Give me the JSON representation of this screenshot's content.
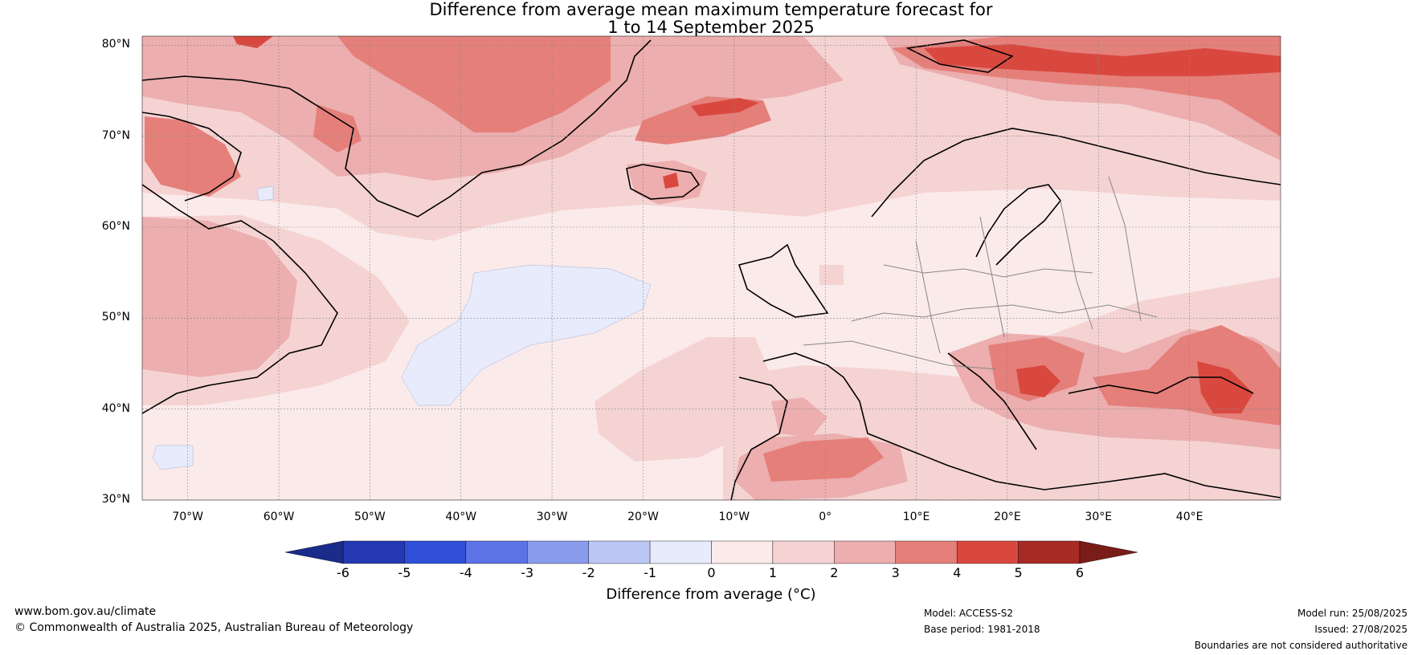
{
  "title": {
    "line1": "Difference from average mean maximum temperature forecast for",
    "line2": "1 to 14 September 2025"
  },
  "map": {
    "lon_range": [
      -75,
      50
    ],
    "lat_range": [
      30,
      81
    ],
    "lat_ticks": [
      {
        "value": 80,
        "label": "80°N"
      },
      {
        "value": 70,
        "label": "70°N"
      },
      {
        "value": 60,
        "label": "60°N"
      },
      {
        "value": 50,
        "label": "50°N"
      },
      {
        "value": 40,
        "label": "40°N"
      },
      {
        "value": 30,
        "label": "30°N"
      }
    ],
    "lon_ticks": [
      {
        "value": -70,
        "label": "70°W"
      },
      {
        "value": -60,
        "label": "60°W"
      },
      {
        "value": -50,
        "label": "50°W"
      },
      {
        "value": -40,
        "label": "40°W"
      },
      {
        "value": -30,
        "label": "30°W"
      },
      {
        "value": -20,
        "label": "20°W"
      },
      {
        "value": -10,
        "label": "10°W"
      },
      {
        "value": 0,
        "label": "0°"
      },
      {
        "value": 10,
        "label": "10°E"
      },
      {
        "value": 20,
        "label": "20°E"
      },
      {
        "value": 30,
        "label": "30°E"
      },
      {
        "value": 40,
        "label": "40°E"
      }
    ]
  },
  "colorbar": {
    "label": "Difference from average (°C)",
    "bins": [
      {
        "from": -6,
        "to": -5,
        "color": "#2538b3"
      },
      {
        "from": -5,
        "to": -4,
        "color": "#2f4fd9"
      },
      {
        "from": -4,
        "to": -3,
        "color": "#5b73e6"
      },
      {
        "from": -3,
        "to": -2,
        "color": "#8a9bec"
      },
      {
        "from": -2,
        "to": -1,
        "color": "#bcc6f4"
      },
      {
        "from": -1,
        "to": 0,
        "color": "#e7ebfb"
      },
      {
        "from": 0,
        "to": 1,
        "color": "#fbeaea"
      },
      {
        "from": 1,
        "to": 2,
        "color": "#f5d3d3"
      },
      {
        "from": 2,
        "to": 3,
        "color": "#ecaeae"
      },
      {
        "from": 3,
        "to": 4,
        "color": "#e57f7a"
      },
      {
        "from": 4,
        "to": 5,
        "color": "#d9483f"
      },
      {
        "from": 5,
        "to": 6,
        "color": "#a82a25"
      }
    ],
    "under_color": "#192c8a",
    "over_color": "#7a1c18",
    "tick_labels": [
      "-6",
      "-5",
      "-4",
      "-3",
      "-2",
      "-1",
      "0",
      "1",
      "2",
      "3",
      "4",
      "5",
      "6"
    ]
  },
  "footer": {
    "website": "www.bom.gov.au/climate",
    "copyright": "© Commonwealth of Australia 2025, Australian Bureau of Meteorology",
    "model": "Model: ACCESS-S2",
    "base_period": "Base period: 1981-2018",
    "model_run": "Model run: 25/08/2025",
    "issued": "Issued: 27/08/2025",
    "disclaimer": "Boundaries are not considered authoritative"
  }
}
